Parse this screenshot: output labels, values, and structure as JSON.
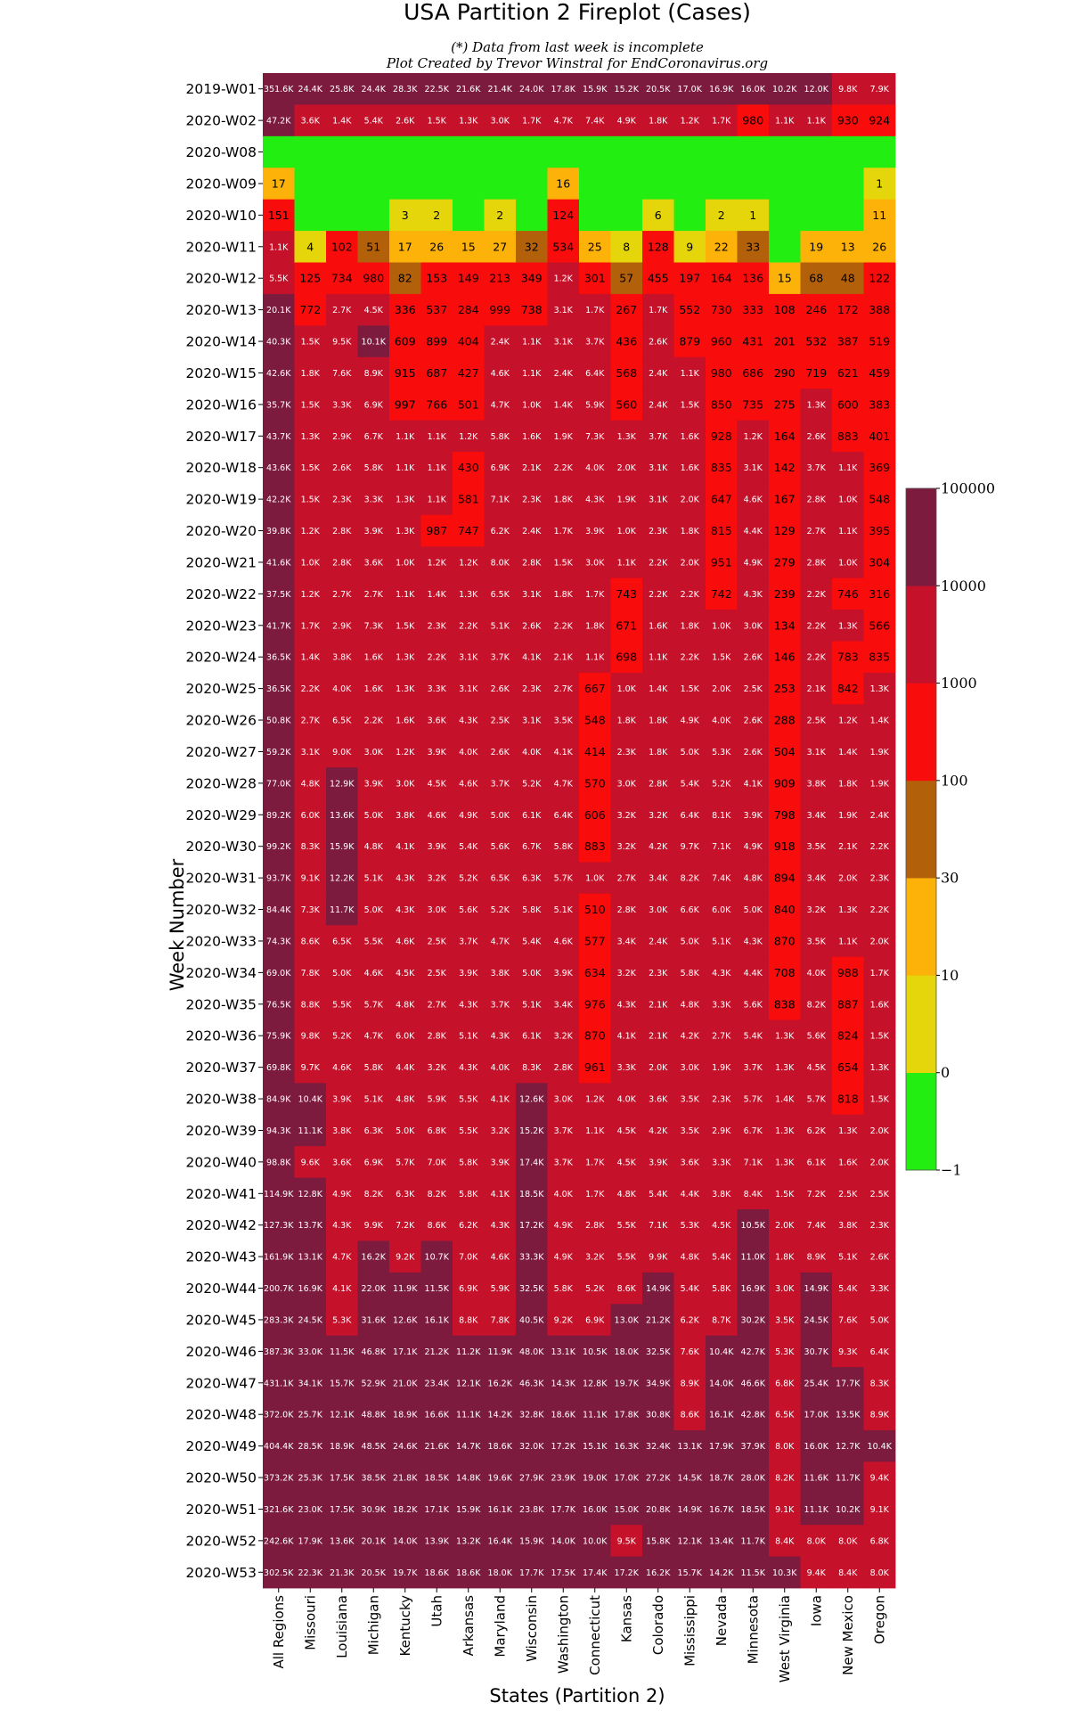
{
  "chart_data": {
    "type": "heatmap",
    "title": "USA Partition 2 Fireplot (Cases)",
    "subtitle_lines": [
      "(*) Data from last week is incomplete",
      "Plot Created by Trevor Winstral for EndCoronavirus.org"
    ],
    "xlabel": "States (Partition 2)",
    "ylabel": "Week Number",
    "columns": [
      "All Regions",
      "Missouri",
      "Louisiana",
      "Michigan",
      "Kentucky",
      "Utah",
      "Arkansas",
      "Maryland",
      "Wisconsin",
      "Washington",
      "Connecticut",
      "Kansas",
      "Colorado",
      "Mississippi",
      "Nevada",
      "Minnesota",
      "West Virginia",
      "Iowa",
      "New Mexico",
      "Oregon"
    ],
    "rows": [
      "2019-W01",
      "2020-W02",
      "2020-W08",
      "2020-W09",
      "2020-W10",
      "2020-W11",
      "2020-W12",
      "2020-W13",
      "2020-W14",
      "2020-W15",
      "2020-W16",
      "2020-W17",
      "2020-W18",
      "2020-W19",
      "2020-W20",
      "2020-W21",
      "2020-W22",
      "2020-W23",
      "2020-W24",
      "2020-W25",
      "2020-W26",
      "2020-W27",
      "2020-W28",
      "2020-W29",
      "2020-W30",
      "2020-W31",
      "2020-W32",
      "2020-W33",
      "2020-W34",
      "2020-W35",
      "2020-W36",
      "2020-W37",
      "2020-W38",
      "2020-W39",
      "2020-W40",
      "2020-W41",
      "2020-W42",
      "2020-W43",
      "2020-W44",
      "2020-W45",
      "2020-W46",
      "2020-W47",
      "2020-W48",
      "2020-W49",
      "2020-W50",
      "2020-W51",
      "2020-W52",
      "2020-W53"
    ],
    "cells": [
      [
        "351.6K",
        "24.4K",
        "25.8K",
        "24.4K",
        "28.3K",
        "22.5K",
        "21.6K",
        "21.4K",
        "24.0K",
        "17.8K",
        "15.9K",
        "15.2K",
        "20.5K",
        "17.0K",
        "16.9K",
        "16.0K",
        "10.2K",
        "12.0K",
        "9.8K",
        "7.9K"
      ],
      [
        "47.2K",
        "3.6K",
        "1.4K",
        "5.4K",
        "2.6K",
        "1.5K",
        "1.3K",
        "3.0K",
        "1.7K",
        "4.7K",
        "7.4K",
        "4.9K",
        "1.8K",
        "1.2K",
        "1.7K",
        "980",
        "1.1K",
        "1.1K",
        "930",
        "924"
      ],
      [
        "",
        "",
        "",
        "",
        "",
        "",
        "",
        "",
        "",
        "",
        "",
        "",
        "",
        "",
        "",
        "",
        "",
        "",
        "",
        ""
      ],
      [
        "17",
        "",
        "",
        "",
        "",
        "",
        "",
        "",
        "",
        "16",
        "",
        "",
        "",
        "",
        "",
        "",
        "",
        "",
        "",
        "1"
      ],
      [
        "151",
        "",
        "",
        "",
        "3",
        "2",
        "",
        "2",
        "",
        "124",
        "",
        "",
        "6",
        "",
        "2",
        "1",
        "",
        "",
        "",
        "11"
      ],
      [
        "1.1K",
        "4",
        "102",
        "51",
        "17",
        "26",
        "15",
        "27",
        "32",
        "534",
        "25",
        "8",
        "128",
        "9",
        "22",
        "33",
        "",
        "19",
        "13",
        "26"
      ],
      [
        "5.5K",
        "125",
        "734",
        "980",
        "82",
        "153",
        "149",
        "213",
        "349",
        "1.2K",
        "301",
        "57",
        "455",
        "197",
        "164",
        "136",
        "15",
        "68",
        "48",
        "122"
      ],
      [
        "20.1K",
        "772",
        "2.7K",
        "4.5K",
        "336",
        "537",
        "284",
        "999",
        "738",
        "3.1K",
        "1.7K",
        "267",
        "1.7K",
        "552",
        "730",
        "333",
        "108",
        "246",
        "172",
        "388"
      ],
      [
        "40.3K",
        "1.5K",
        "9.5K",
        "10.1K",
        "609",
        "899",
        "404",
        "2.4K",
        "1.1K",
        "3.1K",
        "3.7K",
        "436",
        "2.6K",
        "879",
        "960",
        "431",
        "201",
        "532",
        "387",
        "519"
      ],
      [
        "42.6K",
        "1.8K",
        "7.6K",
        "8.9K",
        "915",
        "687",
        "427",
        "4.6K",
        "1.1K",
        "2.4K",
        "6.4K",
        "568",
        "2.4K",
        "1.1K",
        "980",
        "686",
        "290",
        "719",
        "621",
        "459"
      ],
      [
        "35.7K",
        "1.5K",
        "3.3K",
        "6.9K",
        "997",
        "766",
        "501",
        "4.7K",
        "1.0K",
        "1.4K",
        "5.9K",
        "560",
        "2.4K",
        "1.5K",
        "850",
        "735",
        "275",
        "1.3K",
        "600",
        "383"
      ],
      [
        "43.7K",
        "1.3K",
        "2.9K",
        "6.7K",
        "1.1K",
        "1.1K",
        "1.2K",
        "5.8K",
        "1.6K",
        "1.9K",
        "7.3K",
        "1.3K",
        "3.7K",
        "1.6K",
        "928",
        "1.2K",
        "164",
        "2.6K",
        "883",
        "401"
      ],
      [
        "43.6K",
        "1.5K",
        "2.6K",
        "5.8K",
        "1.1K",
        "1.1K",
        "430",
        "6.9K",
        "2.1K",
        "2.2K",
        "4.0K",
        "2.0K",
        "3.1K",
        "1.6K",
        "835",
        "3.1K",
        "142",
        "3.7K",
        "1.1K",
        "369"
      ],
      [
        "42.2K",
        "1.5K",
        "2.3K",
        "3.3K",
        "1.3K",
        "1.1K",
        "581",
        "7.1K",
        "2.3K",
        "1.8K",
        "4.3K",
        "1.9K",
        "3.1K",
        "2.0K",
        "647",
        "4.6K",
        "167",
        "2.8K",
        "1.0K",
        "548"
      ],
      [
        "39.8K",
        "1.2K",
        "2.8K",
        "3.9K",
        "1.3K",
        "987",
        "747",
        "6.2K",
        "2.4K",
        "1.7K",
        "3.9K",
        "1.0K",
        "2.3K",
        "1.8K",
        "815",
        "4.4K",
        "129",
        "2.7K",
        "1.1K",
        "395"
      ],
      [
        "41.6K",
        "1.0K",
        "2.8K",
        "3.6K",
        "1.0K",
        "1.2K",
        "1.2K",
        "8.0K",
        "2.8K",
        "1.5K",
        "3.0K",
        "1.1K",
        "2.2K",
        "2.0K",
        "951",
        "4.9K",
        "279",
        "2.8K",
        "1.0K",
        "304"
      ],
      [
        "37.5K",
        "1.2K",
        "2.7K",
        "2.7K",
        "1.1K",
        "1.4K",
        "1.3K",
        "6.5K",
        "3.1K",
        "1.8K",
        "1.7K",
        "743",
        "2.2K",
        "2.2K",
        "742",
        "4.3K",
        "239",
        "2.2K",
        "746",
        "316"
      ],
      [
        "41.7K",
        "1.7K",
        "2.9K",
        "7.3K",
        "1.5K",
        "2.3K",
        "2.2K",
        "5.1K",
        "2.6K",
        "2.2K",
        "1.8K",
        "671",
        "1.6K",
        "1.8K",
        "1.0K",
        "3.0K",
        "134",
        "2.2K",
        "1.3K",
        "566"
      ],
      [
        "36.5K",
        "1.4K",
        "3.8K",
        "1.6K",
        "1.3K",
        "2.2K",
        "3.1K",
        "3.7K",
        "4.1K",
        "2.1K",
        "1.1K",
        "698",
        "1.1K",
        "2.2K",
        "1.5K",
        "2.6K",
        "146",
        "2.2K",
        "783",
        "835"
      ],
      [
        "36.5K",
        "2.2K",
        "4.0K",
        "1.6K",
        "1.3K",
        "3.3K",
        "3.1K",
        "2.6K",
        "2.3K",
        "2.7K",
        "667",
        "1.0K",
        "1.4K",
        "1.5K",
        "2.0K",
        "2.5K",
        "253",
        "2.1K",
        "842",
        "1.3K"
      ],
      [
        "50.8K",
        "2.7K",
        "6.5K",
        "2.2K",
        "1.6K",
        "3.6K",
        "4.3K",
        "2.5K",
        "3.1K",
        "3.5K",
        "548",
        "1.8K",
        "1.8K",
        "4.9K",
        "4.0K",
        "2.6K",
        "288",
        "2.5K",
        "1.2K",
        "1.4K"
      ],
      [
        "59.2K",
        "3.1K",
        "9.0K",
        "3.0K",
        "1.2K",
        "3.9K",
        "4.0K",
        "2.6K",
        "4.0K",
        "4.1K",
        "414",
        "2.3K",
        "1.8K",
        "5.0K",
        "5.3K",
        "2.6K",
        "504",
        "3.1K",
        "1.4K",
        "1.9K"
      ],
      [
        "77.0K",
        "4.8K",
        "12.9K",
        "3.9K",
        "3.0K",
        "4.5K",
        "4.6K",
        "3.7K",
        "5.2K",
        "4.7K",
        "570",
        "3.0K",
        "2.8K",
        "5.4K",
        "5.2K",
        "4.1K",
        "909",
        "3.8K",
        "1.8K",
        "1.9K"
      ],
      [
        "89.2K",
        "6.0K",
        "13.6K",
        "5.0K",
        "3.8K",
        "4.6K",
        "4.9K",
        "5.0K",
        "6.1K",
        "6.4K",
        "606",
        "3.2K",
        "3.2K",
        "6.4K",
        "8.1K",
        "3.9K",
        "798",
        "3.4K",
        "1.9K",
        "2.4K"
      ],
      [
        "99.2K",
        "8.3K",
        "15.9K",
        "4.8K",
        "4.1K",
        "3.9K",
        "5.4K",
        "5.6K",
        "6.7K",
        "5.8K",
        "883",
        "3.2K",
        "4.2K",
        "9.7K",
        "7.1K",
        "4.9K",
        "918",
        "3.5K",
        "2.1K",
        "2.2K"
      ],
      [
        "93.7K",
        "9.1K",
        "12.2K",
        "5.1K",
        "4.3K",
        "3.2K",
        "5.2K",
        "6.5K",
        "6.3K",
        "5.7K",
        "1.0K",
        "2.7K",
        "3.4K",
        "8.2K",
        "7.4K",
        "4.8K",
        "894",
        "3.4K",
        "2.0K",
        "2.3K"
      ],
      [
        "84.4K",
        "7.3K",
        "11.7K",
        "5.0K",
        "4.3K",
        "3.0K",
        "5.6K",
        "5.2K",
        "5.8K",
        "5.1K",
        "510",
        "2.8K",
        "3.0K",
        "6.6K",
        "6.0K",
        "5.0K",
        "840",
        "3.2K",
        "1.3K",
        "2.2K"
      ],
      [
        "74.3K",
        "8.6K",
        "6.5K",
        "5.5K",
        "4.6K",
        "2.5K",
        "3.7K",
        "4.7K",
        "5.4K",
        "4.6K",
        "577",
        "3.4K",
        "2.4K",
        "5.0K",
        "5.1K",
        "4.3K",
        "870",
        "3.5K",
        "1.1K",
        "2.0K"
      ],
      [
        "69.0K",
        "7.8K",
        "5.0K",
        "4.6K",
        "4.5K",
        "2.5K",
        "3.9K",
        "3.8K",
        "5.0K",
        "3.9K",
        "634",
        "3.2K",
        "2.3K",
        "5.8K",
        "4.3K",
        "4.4K",
        "708",
        "4.0K",
        "988",
        "1.7K"
      ],
      [
        "76.5K",
        "8.8K",
        "5.5K",
        "5.7K",
        "4.8K",
        "2.7K",
        "4.3K",
        "3.7K",
        "5.1K",
        "3.4K",
        "976",
        "4.3K",
        "2.1K",
        "4.8K",
        "3.3K",
        "5.6K",
        "838",
        "8.2K",
        "887",
        "1.6K"
      ],
      [
        "75.9K",
        "9.8K",
        "5.2K",
        "4.7K",
        "6.0K",
        "2.8K",
        "5.1K",
        "4.3K",
        "6.1K",
        "3.2K",
        "870",
        "4.1K",
        "2.1K",
        "4.2K",
        "2.7K",
        "5.4K",
        "1.3K",
        "5.6K",
        "824",
        "1.5K"
      ],
      [
        "69.8K",
        "9.7K",
        "4.6K",
        "5.8K",
        "4.4K",
        "3.2K",
        "4.3K",
        "4.0K",
        "8.3K",
        "2.8K",
        "961",
        "3.3K",
        "2.0K",
        "3.0K",
        "1.9K",
        "3.7K",
        "1.3K",
        "4.5K",
        "654",
        "1.3K"
      ],
      [
        "84.9K",
        "10.4K",
        "3.9K",
        "5.1K",
        "4.8K",
        "5.9K",
        "5.5K",
        "4.1K",
        "12.6K",
        "3.0K",
        "1.2K",
        "4.0K",
        "3.6K",
        "3.5K",
        "2.3K",
        "5.7K",
        "1.4K",
        "5.7K",
        "818",
        "1.5K"
      ],
      [
        "94.3K",
        "11.1K",
        "3.8K",
        "6.3K",
        "5.0K",
        "6.8K",
        "5.5K",
        "3.2K",
        "15.2K",
        "3.7K",
        "1.1K",
        "4.5K",
        "4.2K",
        "3.5K",
        "2.9K",
        "6.7K",
        "1.3K",
        "6.2K",
        "1.3K",
        "2.0K"
      ],
      [
        "98.8K",
        "9.6K",
        "3.6K",
        "6.9K",
        "5.7K",
        "7.0K",
        "5.8K",
        "3.9K",
        "17.4K",
        "3.7K",
        "1.7K",
        "4.5K",
        "3.9K",
        "3.6K",
        "3.3K",
        "7.1K",
        "1.3K",
        "6.1K",
        "1.6K",
        "2.0K"
      ],
      [
        "114.9K",
        "12.8K",
        "4.9K",
        "8.2K",
        "6.3K",
        "8.2K",
        "5.8K",
        "4.1K",
        "18.5K",
        "4.0K",
        "1.7K",
        "4.8K",
        "5.4K",
        "4.4K",
        "3.8K",
        "8.4K",
        "1.5K",
        "7.2K",
        "2.5K",
        "2.5K"
      ],
      [
        "127.3K",
        "13.7K",
        "4.3K",
        "9.9K",
        "7.2K",
        "8.6K",
        "6.2K",
        "4.3K",
        "17.2K",
        "4.9K",
        "2.8K",
        "5.5K",
        "7.1K",
        "5.3K",
        "4.5K",
        "10.5K",
        "2.0K",
        "7.4K",
        "3.8K",
        "2.3K"
      ],
      [
        "161.9K",
        "13.1K",
        "4.7K",
        "16.2K",
        "9.2K",
        "10.7K",
        "7.0K",
        "4.6K",
        "33.3K",
        "4.9K",
        "3.2K",
        "5.5K",
        "9.9K",
        "4.8K",
        "5.4K",
        "11.0K",
        "1.8K",
        "8.9K",
        "5.1K",
        "2.6K"
      ],
      [
        "200.7K",
        "16.9K",
        "4.1K",
        "22.0K",
        "11.9K",
        "11.5K",
        "6.9K",
        "5.9K",
        "32.5K",
        "5.8K",
        "5.2K",
        "8.6K",
        "14.9K",
        "5.4K",
        "5.8K",
        "16.9K",
        "3.0K",
        "14.9K",
        "5.4K",
        "3.3K"
      ],
      [
        "283.3K",
        "24.5K",
        "5.3K",
        "31.6K",
        "12.6K",
        "16.1K",
        "8.8K",
        "7.8K",
        "40.5K",
        "9.2K",
        "6.9K",
        "13.0K",
        "21.2K",
        "6.2K",
        "8.7K",
        "30.2K",
        "3.5K",
        "24.5K",
        "7.6K",
        "5.0K"
      ],
      [
        "387.3K",
        "33.0K",
        "11.5K",
        "46.8K",
        "17.1K",
        "21.2K",
        "11.2K",
        "11.9K",
        "48.0K",
        "13.1K",
        "10.5K",
        "18.0K",
        "32.5K",
        "7.6K",
        "10.4K",
        "42.7K",
        "5.3K",
        "30.7K",
        "9.3K",
        "6.4K"
      ],
      [
        "431.1K",
        "34.1K",
        "15.7K",
        "52.9K",
        "21.0K",
        "23.4K",
        "12.1K",
        "16.2K",
        "46.3K",
        "14.3K",
        "12.8K",
        "19.7K",
        "34.9K",
        "8.9K",
        "14.0K",
        "46.6K",
        "6.8K",
        "25.4K",
        "17.7K",
        "8.3K"
      ],
      [
        "372.0K",
        "25.7K",
        "12.1K",
        "48.8K",
        "18.9K",
        "16.6K",
        "11.1K",
        "14.2K",
        "32.8K",
        "18.6K",
        "11.1K",
        "17.8K",
        "30.8K",
        "8.6K",
        "16.1K",
        "42.8K",
        "6.5K",
        "17.0K",
        "13.5K",
        "8.9K"
      ],
      [
        "404.4K",
        "28.5K",
        "18.9K",
        "48.5K",
        "24.6K",
        "21.6K",
        "14.7K",
        "18.6K",
        "32.0K",
        "17.2K",
        "15.1K",
        "16.3K",
        "32.4K",
        "13.1K",
        "17.9K",
        "37.9K",
        "8.0K",
        "16.0K",
        "12.7K",
        "10.4K"
      ],
      [
        "373.2K",
        "25.3K",
        "17.5K",
        "38.5K",
        "21.8K",
        "18.5K",
        "14.8K",
        "19.6K",
        "27.9K",
        "23.9K",
        "19.0K",
        "17.0K",
        "27.2K",
        "14.5K",
        "18.7K",
        "28.0K",
        "8.2K",
        "11.6K",
        "11.7K",
        "9.4K"
      ],
      [
        "321.6K",
        "23.0K",
        "17.5K",
        "30.9K",
        "18.2K",
        "17.1K",
        "15.9K",
        "16.1K",
        "23.8K",
        "17.7K",
        "16.0K",
        "15.0K",
        "20.8K",
        "14.9K",
        "16.7K",
        "18.5K",
        "9.1K",
        "11.1K",
        "10.2K",
        "9.1K"
      ],
      [
        "242.6K",
        "17.9K",
        "13.6K",
        "20.1K",
        "14.0K",
        "13.9K",
        "13.2K",
        "16.4K",
        "15.9K",
        "14.0K",
        "10.0K",
        "9.5K",
        "15.8K",
        "12.1K",
        "13.4K",
        "11.7K",
        "8.4K",
        "8.0K",
        "8.0K",
        "6.8K"
      ],
      [
        "302.5K",
        "22.3K",
        "21.3K",
        "20.5K",
        "19.7K",
        "18.6K",
        "18.6K",
        "18.0K",
        "17.7K",
        "17.5K",
        "17.4K",
        "17.2K",
        "16.2K",
        "15.7K",
        "14.2K",
        "11.5K",
        "10.3K",
        "9.4K",
        "8.4K",
        "8.0K"
      ]
    ],
    "colorbar": {
      "bins": [
        {
          "label": "-1",
          "color": "#22ee11"
        },
        {
          "label": "0",
          "color": "#e5d60b"
        },
        {
          "label": "10",
          "color": "#fdb20a"
        },
        {
          "label": "30",
          "color": "#b3600b"
        },
        {
          "label": "100",
          "color": "#f80c0c"
        },
        {
          "label": "1000",
          "color": "#c6112a"
        },
        {
          "label": "10000",
          "color": "#7d1b3f"
        },
        {
          "label": "100000",
          "color": ""
        }
      ]
    }
  }
}
